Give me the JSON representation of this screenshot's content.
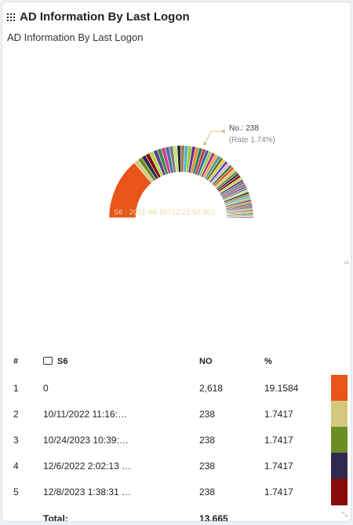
{
  "panel": {
    "title": "AD Information By Last Logon",
    "subtitle": "AD Information By Last Logon",
    "icon": "grid-icon",
    "side_icon": "link-icon",
    "side_glyph": "∞",
    "resize_glyph": "⤡"
  },
  "chart_data": {
    "type": "pie",
    "variant": "half-donut",
    "slice_count": 58,
    "slices": [
      {
        "label": "0",
        "value": 2618,
        "percent": 19.1584,
        "color": "#e8541a"
      },
      {
        "label": "2021-04-19T12:21:52.851",
        "value": 238,
        "percent": 1.74,
        "color": "#d4c87e"
      }
    ],
    "tooltip": {
      "line1": "No.: 238",
      "line2": "(Rate 1.74%)"
    },
    "label_text": "S6 : 2021-04-19T12:21:52.851",
    "colors": [
      "#e8541a",
      "#d4c87e",
      "#6b8e23",
      "#2e2a4f",
      "#8b0a0a",
      "#b5d84a",
      "#5c3d8f",
      "#3a8a4a",
      "#d43b8c",
      "#4a6fa5",
      "#7d7d7d",
      "#c9e27a",
      "#2b2b2b",
      "#a07850",
      "#46b4c9",
      "#9bcb3a",
      "#6a2c91",
      "#e08a2c",
      "#1f7a5c",
      "#c23b3b",
      "#3d5ea8",
      "#8fd14f",
      "#b2357e",
      "#ff9f40",
      "#3c9d9b",
      "#6d6d2d",
      "#d1d147",
      "#5b4bb2",
      "#e6b3d4",
      "#2f7f2f"
    ]
  },
  "table": {
    "headers": {
      "idx": "#",
      "s6": "S6",
      "no": "NO",
      "pct": "%"
    },
    "rows": [
      {
        "idx": "1",
        "s6": "0",
        "no": "2,618",
        "pct": "19.1584",
        "color": "#e8541a"
      },
      {
        "idx": "2",
        "s6": "10/11/2022 11:16:…",
        "no": "238",
        "pct": "1.7417",
        "color": "#d4c87e"
      },
      {
        "idx": "3",
        "s6": "10/24/2023 10:39:…",
        "no": "238",
        "pct": "1.7417",
        "color": "#6b8e23"
      },
      {
        "idx": "4",
        "s6": "12/6/2022 2:02:13 …",
        "no": "238",
        "pct": "1.7417",
        "color": "#2e2a4f"
      },
      {
        "idx": "5",
        "s6": "12/8/2023 1:38:31 …",
        "no": "238",
        "pct": "1.7417",
        "color": "#8b0a0a"
      }
    ],
    "total_label": "Total:",
    "total_value": "13,665"
  }
}
